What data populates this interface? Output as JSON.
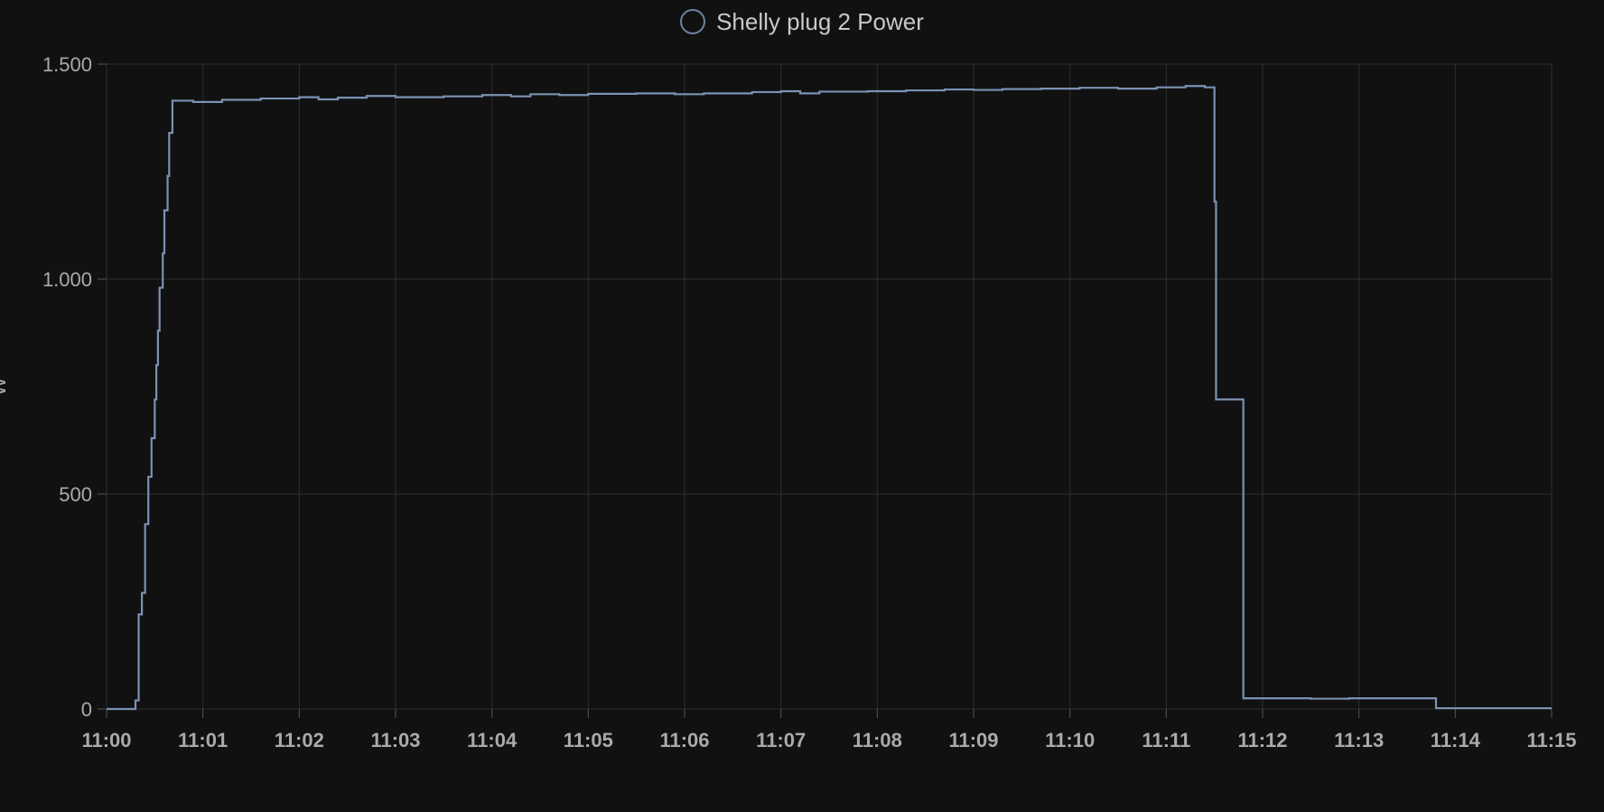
{
  "chart_data": {
    "type": "line",
    "step": true,
    "title": "",
    "xlabel": "",
    "ylabel": "W",
    "legend_position": "top-center",
    "grid": true,
    "line_color": "#7b91b3",
    "grid_color": "#2e2e2e",
    "background": "#111111",
    "xlim": [
      "11:00",
      "11:15"
    ],
    "ylim": [
      0,
      1500
    ],
    "x_ticks": [
      "11:00",
      "11:01",
      "11:02",
      "11:03",
      "11:04",
      "11:05",
      "11:06",
      "11:07",
      "11:08",
      "11:09",
      "11:10",
      "11:11",
      "11:12",
      "11:13",
      "11:14",
      "11:15"
    ],
    "y_ticks": [
      0,
      500,
      1000,
      1500
    ],
    "y_tick_labels": [
      "0",
      "500",
      "1.000",
      "1.500"
    ],
    "series": [
      {
        "name": "Shelly plug 2 Power",
        "points": [
          [
            "11:00:00",
            0
          ],
          [
            "11:00:18",
            20
          ],
          [
            "11:00:20",
            220
          ],
          [
            "11:00:22",
            270
          ],
          [
            "11:00:24",
            430
          ],
          [
            "11:00:26",
            540
          ],
          [
            "11:00:28",
            630
          ],
          [
            "11:00:30",
            720
          ],
          [
            "11:00:31",
            800
          ],
          [
            "11:00:32",
            880
          ],
          [
            "11:00:33",
            980
          ],
          [
            "11:00:35",
            1060
          ],
          [
            "11:00:36",
            1160
          ],
          [
            "11:00:38",
            1240
          ],
          [
            "11:00:39",
            1340
          ],
          [
            "11:00:41",
            1415
          ],
          [
            "11:00:54",
            1412
          ],
          [
            "11:01:12",
            1417
          ],
          [
            "11:01:36",
            1420
          ],
          [
            "11:02:00",
            1423
          ],
          [
            "11:02:12",
            1418
          ],
          [
            "11:02:24",
            1422
          ],
          [
            "11:02:42",
            1426
          ],
          [
            "11:03:00",
            1423
          ],
          [
            "11:03:30",
            1425
          ],
          [
            "11:03:54",
            1428
          ],
          [
            "11:04:12",
            1425
          ],
          [
            "11:04:24",
            1430
          ],
          [
            "11:04:42",
            1428
          ],
          [
            "11:05:00",
            1431
          ],
          [
            "11:05:30",
            1432
          ],
          [
            "11:05:54",
            1430
          ],
          [
            "11:06:12",
            1432
          ],
          [
            "11:06:42",
            1435
          ],
          [
            "11:07:00",
            1437
          ],
          [
            "11:07:12",
            1432
          ],
          [
            "11:07:24",
            1436
          ],
          [
            "11:07:54",
            1437
          ],
          [
            "11:08:18",
            1439
          ],
          [
            "11:08:42",
            1441
          ],
          [
            "11:09:00",
            1440
          ],
          [
            "11:09:18",
            1442
          ],
          [
            "11:09:42",
            1443
          ],
          [
            "11:10:06",
            1445
          ],
          [
            "11:10:30",
            1443
          ],
          [
            "11:10:54",
            1446
          ],
          [
            "11:11:12",
            1449
          ],
          [
            "11:11:24",
            1446
          ],
          [
            "11:11:30",
            1180
          ],
          [
            "11:11:31",
            720
          ],
          [
            "11:11:48",
            25
          ],
          [
            "11:12:30",
            24
          ],
          [
            "11:12:54",
            25
          ],
          [
            "11:13:48",
            2
          ],
          [
            "11:15:00",
            2
          ]
        ]
      }
    ]
  }
}
